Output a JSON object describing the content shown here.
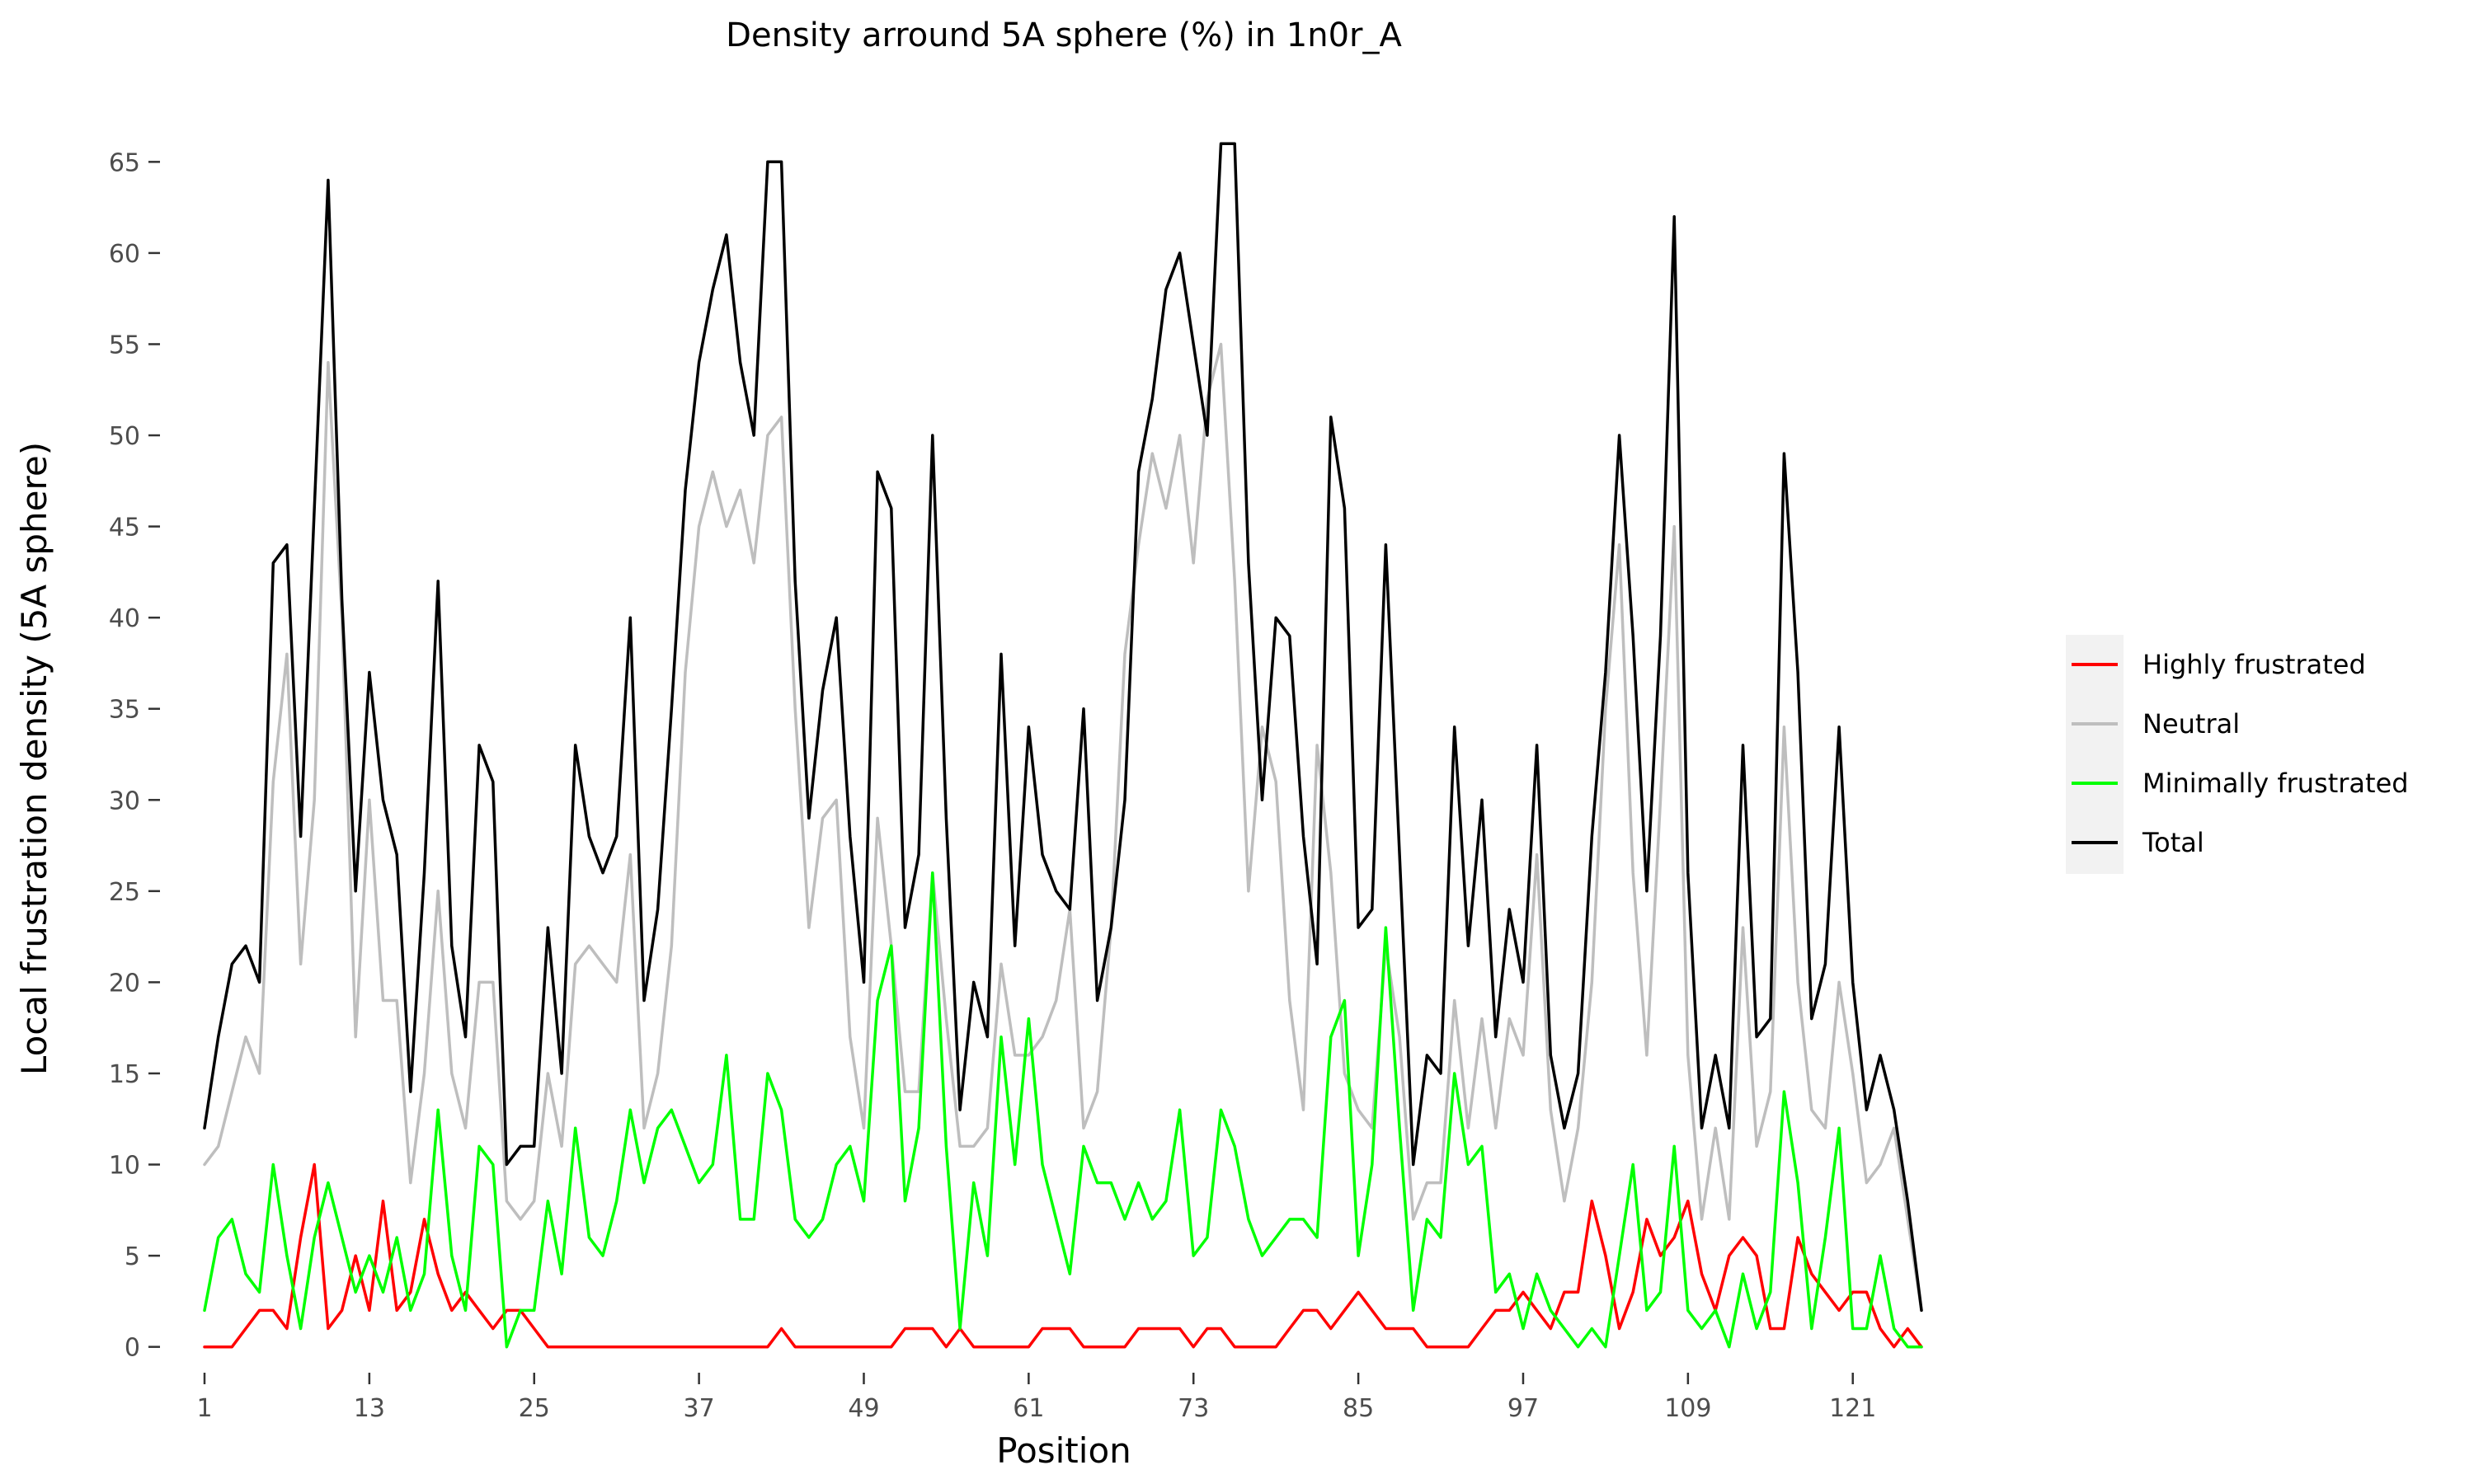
{
  "chart_data": {
    "type": "line",
    "title": "Density arround 5A sphere (%) in 1n0r_A",
    "xlabel": "Position",
    "ylabel": "Local frustration density (5A sphere)",
    "xlim": [
      1,
      126
    ],
    "ylim": [
      -3,
      68
    ],
    "x_ticks": [
      1,
      13,
      25,
      37,
      49,
      61,
      73,
      85,
      97,
      109,
      121
    ],
    "y_ticks": [
      0,
      5,
      10,
      15,
      20,
      25,
      30,
      35,
      40,
      45,
      50,
      55,
      60,
      65
    ],
    "grid": false,
    "legend_position": "right",
    "x": [
      1,
      2,
      3,
      4,
      5,
      6,
      7,
      8,
      9,
      10,
      11,
      12,
      13,
      14,
      15,
      16,
      17,
      18,
      19,
      20,
      21,
      22,
      23,
      24,
      25,
      26,
      27,
      28,
      29,
      30,
      31,
      32,
      33,
      34,
      35,
      36,
      37,
      38,
      39,
      40,
      41,
      42,
      43,
      44,
      45,
      46,
      47,
      48,
      49,
      50,
      51,
      52,
      53,
      54,
      55,
      56,
      57,
      58,
      59,
      60,
      61,
      62,
      63,
      64,
      65,
      66,
      67,
      68,
      69,
      70,
      71,
      72,
      73,
      74,
      75,
      76,
      77,
      78,
      79,
      80,
      81,
      82,
      83,
      84,
      85,
      86,
      87,
      88,
      89,
      90,
      91,
      92,
      93,
      94,
      95,
      96,
      97,
      98,
      99,
      100,
      101,
      102,
      103,
      104,
      105,
      106,
      107,
      108,
      109,
      110,
      111,
      112,
      113,
      114,
      115,
      116,
      117,
      118,
      119,
      120,
      121,
      122,
      123,
      124,
      125,
      126
    ],
    "series": [
      {
        "name": "Highly frustrated",
        "color": "#ff0000",
        "values": [
          0,
          0,
          0,
          1,
          2,
          2,
          1,
          6,
          10,
          1,
          2,
          5,
          2,
          8,
          2,
          3,
          7,
          4,
          2,
          3,
          2,
          1,
          2,
          2,
          1,
          0,
          0,
          0,
          0,
          0,
          0,
          0,
          0,
          0,
          0,
          0,
          0,
          0,
          0,
          0,
          0,
          0,
          1,
          0,
          0,
          0,
          0,
          0,
          0,
          0,
          0,
          1,
          1,
          1,
          0,
          1,
          0,
          0,
          0,
          0,
          0,
          1,
          1,
          1,
          0,
          0,
          0,
          0,
          1,
          1,
          1,
          1,
          0,
          1,
          1,
          0,
          0,
          0,
          0,
          1,
          2,
          2,
          1,
          2,
          3,
          2,
          1,
          1,
          1,
          0,
          0,
          0,
          0,
          1,
          2,
          2,
          3,
          2,
          1,
          3,
          3,
          8,
          5,
          1,
          3,
          7,
          5,
          6,
          8,
          4,
          2,
          5,
          6,
          5,
          1,
          1,
          6,
          4,
          3,
          2,
          3,
          3,
          1,
          0,
          1,
          0
        ]
      },
      {
        "name": "Neutral",
        "color": "#bebebe",
        "values": [
          10,
          11,
          14,
          17,
          15,
          31,
          38,
          21,
          30,
          54,
          40,
          17,
          30,
          19,
          19,
          9,
          15,
          25,
          15,
          12,
          20,
          20,
          8,
          7,
          8,
          15,
          11,
          21,
          22,
          21,
          20,
          27,
          12,
          15,
          22,
          37,
          45,
          48,
          45,
          47,
          43,
          50,
          51,
          35,
          23,
          29,
          30,
          17,
          12,
          29,
          22,
          14,
          14,
          26,
          18,
          11,
          11,
          12,
          21,
          16,
          16,
          17,
          19,
          24,
          12,
          14,
          23,
          38,
          44,
          49,
          46,
          50,
          43,
          52,
          55,
          42,
          25,
          34,
          31,
          19,
          13,
          33,
          26,
          15,
          13,
          12,
          22,
          17,
          7,
          9,
          9,
          19,
          12,
          18,
          12,
          18,
          16,
          27,
          13,
          8,
          12,
          20,
          35,
          44,
          26,
          16,
          30,
          45,
          16,
          7,
          12,
          7,
          23,
          11,
          14,
          34,
          20,
          13,
          12,
          20,
          15,
          9,
          10,
          12,
          7,
          2
        ]
      },
      {
        "name": "Minimally frustrated",
        "color": "#00ff00",
        "values": [
          2,
          6,
          7,
          4,
          3,
          10,
          5,
          1,
          6,
          9,
          6,
          3,
          5,
          3,
          6,
          2,
          4,
          13,
          5,
          2,
          11,
          10,
          0,
          2,
          2,
          8,
          4,
          12,
          6,
          5,
          8,
          13,
          9,
          12,
          13,
          11,
          9,
          10,
          16,
          7,
          7,
          15,
          13,
          7,
          6,
          7,
          10,
          11,
          8,
          19,
          22,
          8,
          12,
          26,
          11,
          1,
          9,
          5,
          17,
          10,
          18,
          10,
          7,
          4,
          11,
          9,
          9,
          7,
          9,
          7,
          8,
          13,
          5,
          6,
          13,
          11,
          7,
          5,
          6,
          7,
          7,
          6,
          17,
          19,
          5,
          10,
          23,
          12,
          2,
          7,
          6,
          15,
          10,
          11,
          3,
          4,
          1,
          4,
          2,
          1,
          0,
          1,
          0,
          5,
          10,
          2,
          3,
          11,
          2,
          1,
          2,
          0,
          4,
          1,
          3,
          14,
          9,
          1,
          6,
          12,
          1,
          1,
          5,
          1,
          0,
          0
        ]
      },
      {
        "name": "Total",
        "color": "#000000",
        "values": [
          12,
          17,
          21,
          22,
          20,
          43,
          44,
          28,
          46,
          64,
          41,
          25,
          37,
          30,
          27,
          14,
          26,
          42,
          22,
          17,
          33,
          31,
          10,
          11,
          11,
          23,
          15,
          33,
          28,
          26,
          28,
          40,
          19,
          24,
          35,
          47,
          54,
          58,
          61,
          54,
          50,
          65,
          65,
          42,
          29,
          36,
          40,
          28,
          20,
          48,
          46,
          23,
          27,
          50,
          29,
          13,
          20,
          17,
          38,
          22,
          34,
          27,
          25,
          24,
          35,
          19,
          23,
          30,
          48,
          52,
          58,
          60,
          55,
          50,
          66,
          66,
          43,
          30,
          40,
          39,
          28,
          21,
          51,
          46,
          23,
          24,
          44,
          27,
          10,
          16,
          15,
          34,
          22,
          30,
          17,
          24,
          20,
          33,
          16,
          12,
          15,
          28,
          37,
          50,
          39,
          25,
          39,
          62,
          26,
          12,
          16,
          12,
          33,
          17,
          18,
          49,
          37,
          18,
          21,
          34,
          20,
          13,
          16,
          13,
          8,
          2
        ]
      }
    ]
  }
}
